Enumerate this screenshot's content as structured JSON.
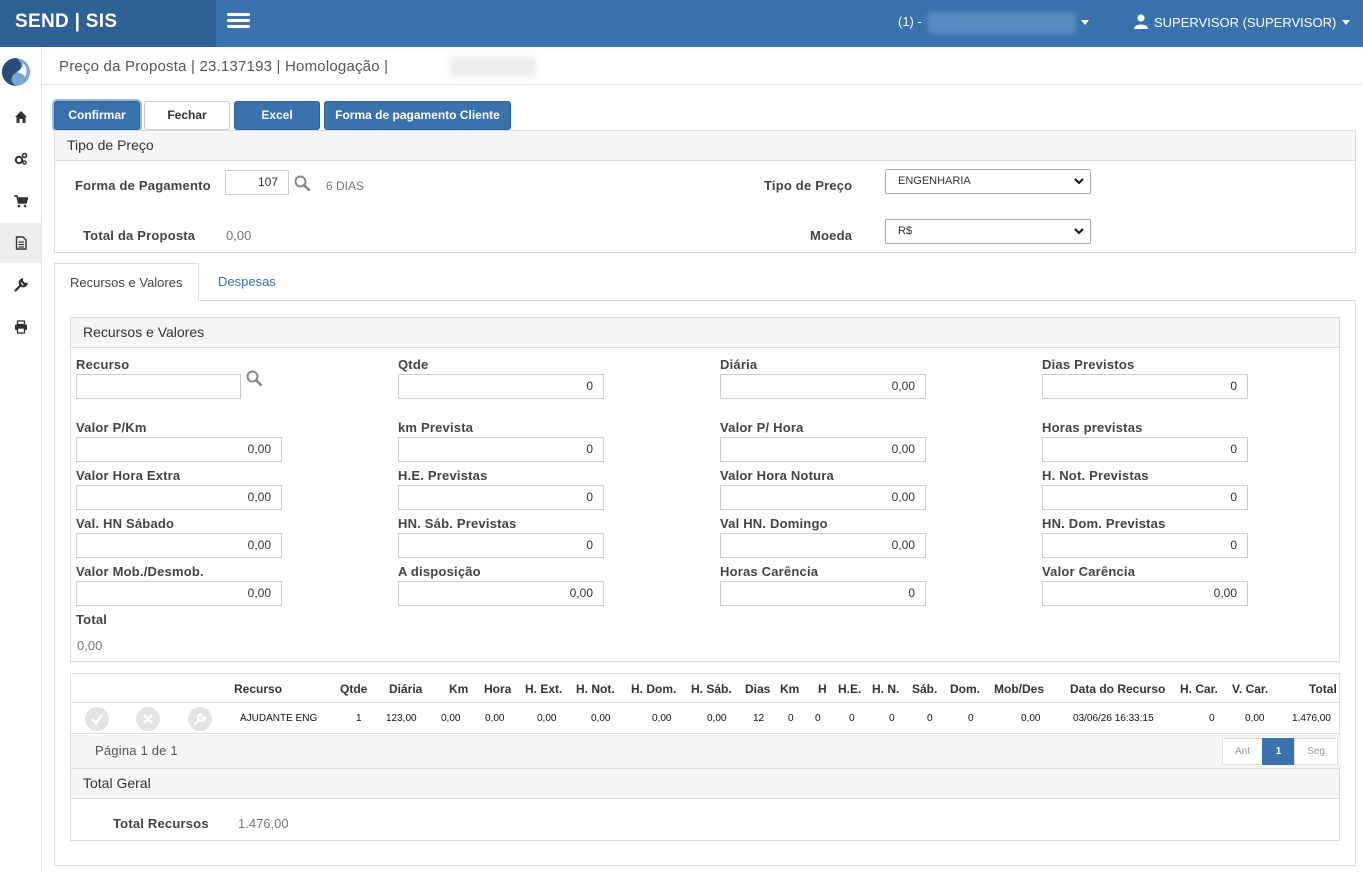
{
  "header": {
    "brand": "SEND | SIS",
    "company_prefix": "(1) -",
    "user": "SUPERVISOR (SUPERVISOR)"
  },
  "sidebar": {
    "items": [
      {
        "icon": "home-icon"
      },
      {
        "icon": "gears-icon"
      },
      {
        "icon": "shopping-cart-icon"
      },
      {
        "icon": "document-icon"
      },
      {
        "icon": "wrench-icon"
      },
      {
        "icon": "printer-icon"
      }
    ]
  },
  "breadcrumb": "Preço da Proposta | 23.137193 | Homologação |",
  "toolbar": {
    "confirm": "Confirmar",
    "close": "Fechar",
    "excel": "Excel",
    "payment": "Forma de pagamento Cliente"
  },
  "price_type_panel": {
    "title": "Tipo de Preço",
    "payment_label": "Forma de Pagamento",
    "payment_value": "107",
    "payment_desc": "6 DIAS",
    "total_label": "Total da Proposta",
    "total_value": "0,00",
    "type_label": "Tipo de Preço",
    "type_value": "ENGENHARIA",
    "currency_label": "Moeda",
    "currency_value": "R$"
  },
  "tabs": [
    {
      "label": "Recursos e Valores"
    },
    {
      "label": "Despesas"
    }
  ],
  "resources_panel": {
    "title": "Recursos e Valores",
    "fields": {
      "recurso": {
        "label": "Recurso",
        "value": ""
      },
      "qtde": {
        "label": "Qtde",
        "value": "0"
      },
      "diaria": {
        "label": "Diária",
        "value": "0,00"
      },
      "dias_previstos": {
        "label": "Dias Previstos",
        "value": "0"
      },
      "valor_km": {
        "label": "Valor P/Km",
        "value": "0,00"
      },
      "km_prevista": {
        "label": "km Prevista",
        "value": "0"
      },
      "valor_hora": {
        "label": "Valor P/ Hora",
        "value": "0,00"
      },
      "horas_previstas": {
        "label": "Horas previstas",
        "value": "0"
      },
      "valor_he": {
        "label": "Valor Hora Extra",
        "value": "0,00"
      },
      "he_previstas": {
        "label": "H.E. Previstas",
        "value": "0"
      },
      "valor_hn": {
        "label": "Valor Hora Notura",
        "value": "0,00"
      },
      "hnot_previstas": {
        "label": "H. Not. Previstas",
        "value": "0"
      },
      "val_hn_sab": {
        "label": "Val. HN Sábado",
        "value": "0,00"
      },
      "hn_sab_previstas": {
        "label": "HN. Sáb. Previstas",
        "value": "0"
      },
      "val_hn_dom": {
        "label": "Val HN. Domingo",
        "value": "0,00"
      },
      "hn_dom_previstas": {
        "label": "HN. Dom. Previstas",
        "value": "0"
      },
      "valor_mob": {
        "label": "Valor Mob./Desmob.",
        "value": "0,00"
      },
      "a_disposicao": {
        "label": "A disposição",
        "value": "0,00"
      },
      "horas_carencia": {
        "label": "Horas Carência",
        "value": "0"
      },
      "valor_carencia": {
        "label": "Valor Carência",
        "value": "0,00"
      }
    },
    "total_label": "Total",
    "total_value": "0,00"
  },
  "grid": {
    "columns": [
      "Recurso",
      "Qtde",
      "Diária",
      "Km",
      "Hora",
      "H. Ext.",
      "H. Not.",
      "H. Dom.",
      "H. Sáb.",
      "Dias",
      "Km",
      "H",
      "H.E.",
      "H. N.",
      "Sáb.",
      "Dom.",
      "Mob/Des",
      "Data do Recurso",
      "H. Car.",
      "V. Car.",
      "Total"
    ],
    "rows": [
      [
        "AJUDANTE ENG",
        "1",
        "123,00",
        "0,00",
        "0,00",
        "0,00",
        "0,00",
        "0,00",
        "0,00",
        "12",
        "0",
        "0",
        "0",
        "0",
        "0",
        "0",
        "0,00",
        "03/06/26 16:33:15",
        "0",
        "0,00",
        "1.476,00"
      ]
    ],
    "page_info": "Página 1 de 1",
    "pager": {
      "prev": "Ant",
      "current": "1",
      "next": "Seg"
    }
  },
  "total_panel": {
    "title": "Total Geral",
    "label": "Total Recursos",
    "value": "1.476,00"
  }
}
